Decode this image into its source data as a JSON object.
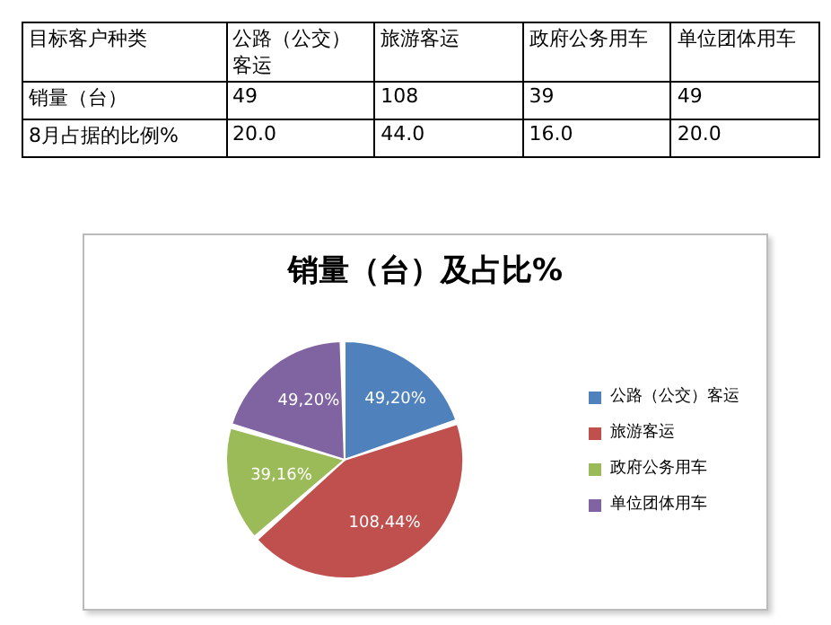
{
  "chart_data": {
    "type": "pie",
    "title": "销量（台）及占比%",
    "categories": [
      "公路（公交）客运",
      "旅游客运",
      "政府公务用车",
      "单位团体用车"
    ],
    "values": [
      49,
      108,
      39,
      49
    ],
    "colors": [
      "#4f81bd",
      "#c0504d",
      "#9bbb59",
      "#8064a2"
    ],
    "data_labels": true,
    "legend": "right",
    "annotations": [
      "目标客户种类",
      "销量（台）",
      "8月占据的比例%",
      "49",
      "108",
      "39",
      "49",
      "20.0",
      "44.0",
      "16.0",
      "20.0",
      ",20%",
      ",44%",
      ",16%",
      ",20%"
    ]
  }
}
